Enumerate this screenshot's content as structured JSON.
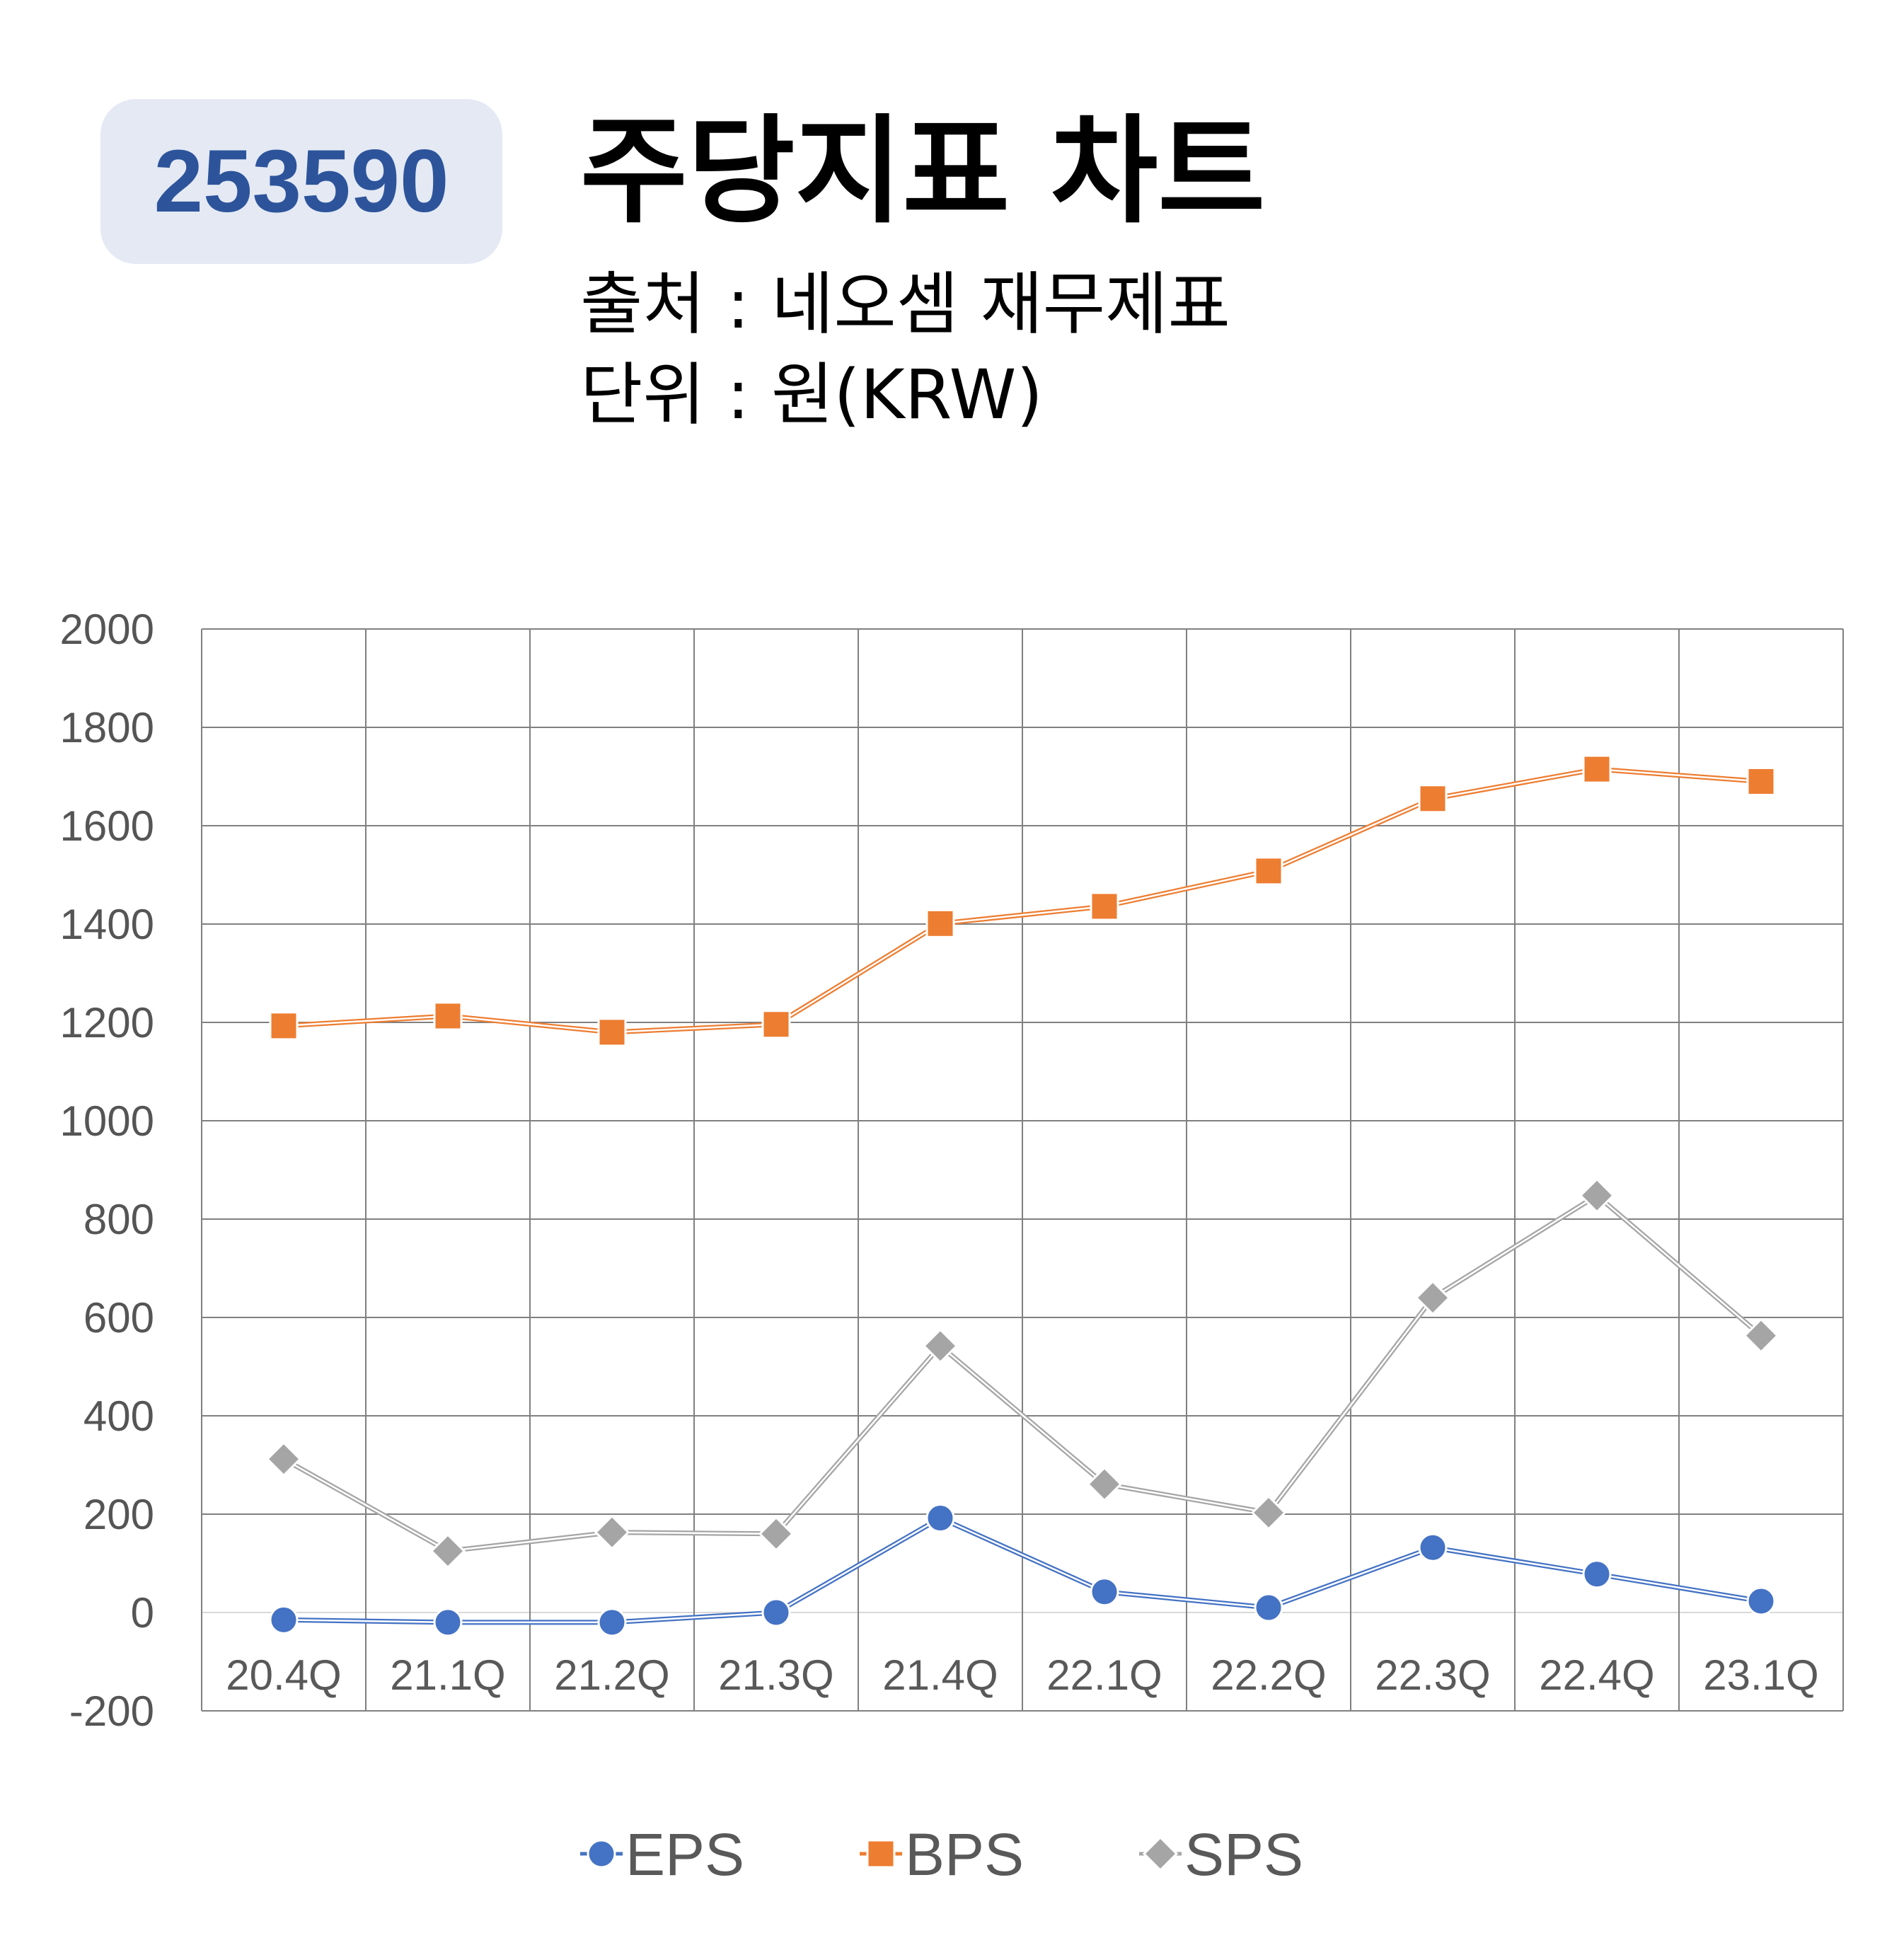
{
  "badge": "253590",
  "title": "주당지표 차트",
  "source": "출처 : 네오셈 재무제표",
  "unit": "단위 : 원(KRW)",
  "colors": {
    "EPS": "#4472c4",
    "BPS": "#ed7d31",
    "SPS": "#a5a5a5",
    "badge_bg": "#e4e9f4",
    "badge_text": "#2d549b"
  },
  "chart_data": {
    "type": "line",
    "categories": [
      "20.4Q",
      "21.1Q",
      "21.2Q",
      "21.3Q",
      "21.4Q",
      "22.1Q",
      "22.2Q",
      "22.3Q",
      "22.4Q",
      "23.1Q"
    ],
    "series": [
      {
        "name": "EPS",
        "marker": "circle",
        "values": [
          -15,
          -20,
          -20,
          0,
          192,
          42,
          10,
          132,
          78,
          23
        ]
      },
      {
        "name": "BPS",
        "marker": "square",
        "values": [
          1193,
          1213,
          1180,
          1196,
          1401,
          1436,
          1508,
          1655,
          1715,
          1690
        ]
      },
      {
        "name": "SPS",
        "marker": "diamond",
        "values": [
          312,
          125,
          163,
          160,
          542,
          261,
          203,
          640,
          848,
          563
        ]
      }
    ],
    "ylim": [
      -200,
      2000
    ],
    "yticks": [
      "2000",
      "1800",
      "1600",
      "1400",
      "1200",
      "1000",
      "800",
      "600",
      "400",
      "200",
      "0",
      "-200"
    ],
    "grid": true,
    "legend": "bottom"
  }
}
